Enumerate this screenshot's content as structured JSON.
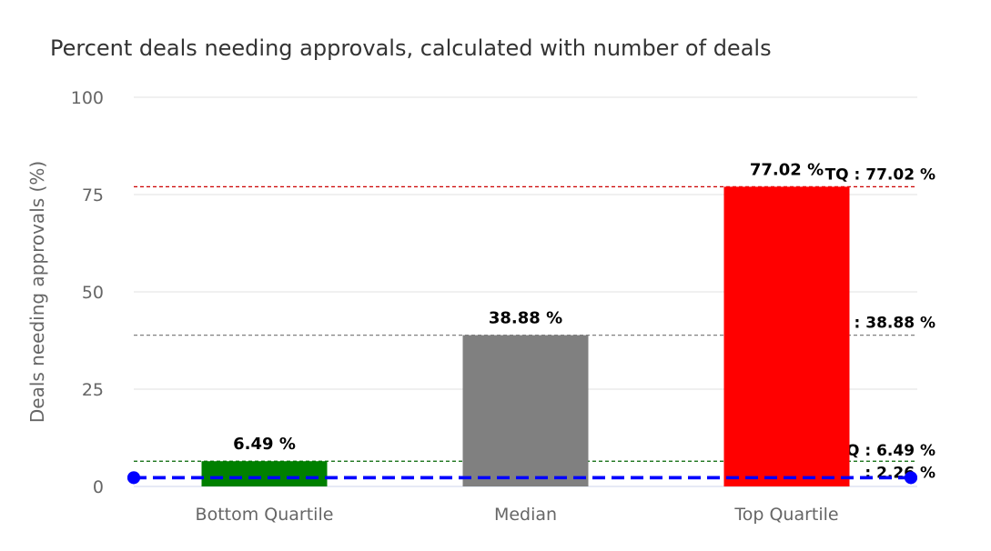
{
  "chart_data": {
    "type": "bar",
    "title": "Percent deals needing approvals, calculated with number of deals",
    "xlabel": "",
    "ylabel": "Deals needing approvals (%)",
    "ylim": [
      0,
      100
    ],
    "yticks": [
      0,
      25,
      50,
      75,
      100
    ],
    "grid": true,
    "categories": [
      "Bottom Quartile",
      "Median",
      "Top Quartile"
    ],
    "values": [
      6.49,
      38.88,
      77.02
    ],
    "colors": [
      "#008000",
      "#808080",
      "#ff0000"
    ],
    "data_labels": [
      "6.49 %",
      "38.88 %",
      "77.02 %"
    ],
    "reference_lines": [
      {
        "value": 77.02,
        "label": "TQ : 77.02 %",
        "color": "#cc0000"
      },
      {
        "value": 38.88,
        "label": ": 38.88 %",
        "color": "#808080"
      },
      {
        "value": 6.49,
        "label": "BQ : 6.49 %",
        "color": "#006400"
      },
      {
        "value": 2.26,
        "label": ": 2.26 %",
        "color": "#0000ff"
      }
    ]
  }
}
